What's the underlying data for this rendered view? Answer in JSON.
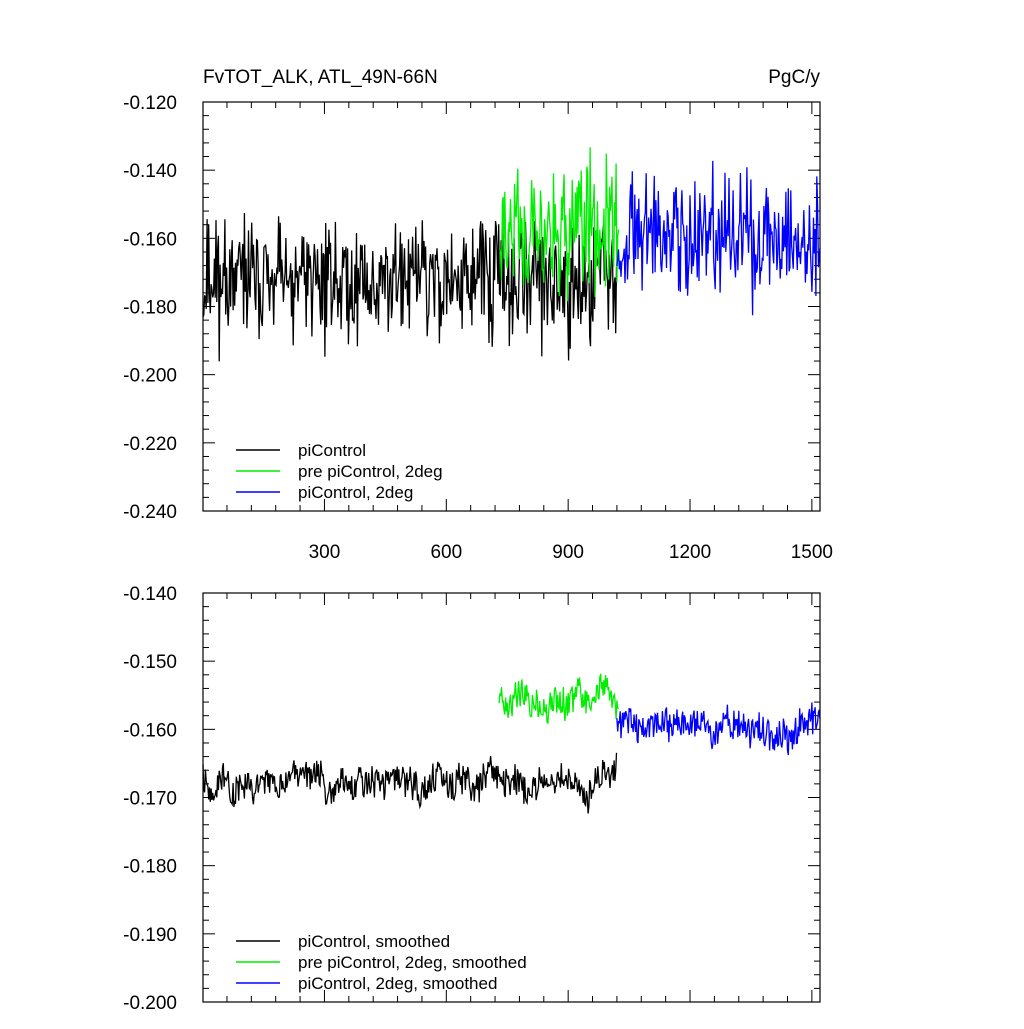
{
  "chart_data": [
    {
      "id": "top",
      "type": "line",
      "title_left": "FvTOT_ALK, ATL_49N-66N",
      "title_right": "PgC/y",
      "xlim": [
        1,
        1520
      ],
      "ylim": [
        -0.24,
        -0.12
      ],
      "xticks": [
        300,
        600,
        900,
        1200,
        1500
      ],
      "xtick_labels": [
        "300",
        "600",
        "900",
        "1200",
        "1500"
      ],
      "yticks": [
        -0.24,
        -0.22,
        -0.2,
        -0.18,
        -0.16,
        -0.14,
        -0.12
      ],
      "ytick_labels": [
        "-0.240",
        "-0.220",
        "-0.200",
        "-0.180",
        "-0.160",
        "-0.140",
        "-0.120"
      ],
      "grid": false,
      "legend_position": "bottom-left",
      "series": [
        {
          "name": "piControl",
          "color": "#000000",
          "x_range": [
            1,
            1020
          ],
          "mean": -0.172,
          "amplitude": 0.011,
          "seed": 11,
          "smooth": 1
        },
        {
          "name": "pre piControl, 2deg",
          "color": "#00ee00",
          "x_range": [
            730,
            1025
          ],
          "mean": -0.157,
          "amplitude": 0.012,
          "seed": 23,
          "smooth": 1
        },
        {
          "name": "piControl, 2deg",
          "color": "#0000ff",
          "x_range": [
            1020,
            1520
          ],
          "mean": -0.16,
          "amplitude": 0.011,
          "seed": 37,
          "smooth": 1
        }
      ]
    },
    {
      "id": "bottom",
      "type": "line",
      "xlim": [
        1,
        1520
      ],
      "ylim": [
        -0.2,
        -0.14
      ],
      "xticks": [
        300,
        600,
        900,
        1200,
        1500
      ],
      "yticks": [
        -0.2,
        -0.19,
        -0.18,
        -0.17,
        -0.16,
        -0.15,
        -0.14
      ],
      "ytick_labels": [
        "-0.200",
        "-0.190",
        "-0.180",
        "-0.170",
        "-0.160",
        "-0.150",
        "-0.140"
      ],
      "grid": false,
      "legend_position": "bottom-left",
      "series": [
        {
          "name": "piControl, smoothed",
          "color": "#000000",
          "x_range": [
            1,
            1020
          ],
          "mean": -0.168,
          "amplitude": 0.0055,
          "seed": 51,
          "smooth": 3
        },
        {
          "name": "pre piControl, 2deg, smoothed",
          "color": "#00ee00",
          "x_range": [
            730,
            1025
          ],
          "mean": -0.155,
          "amplitude": 0.0055,
          "seed": 63,
          "smooth": 3
        },
        {
          "name": "piControl, 2deg, smoothed",
          "color": "#0000ff",
          "x_range": [
            1020,
            1520
          ],
          "mean": -0.16,
          "amplitude": 0.0055,
          "seed": 77,
          "smooth": 3
        }
      ]
    }
  ]
}
